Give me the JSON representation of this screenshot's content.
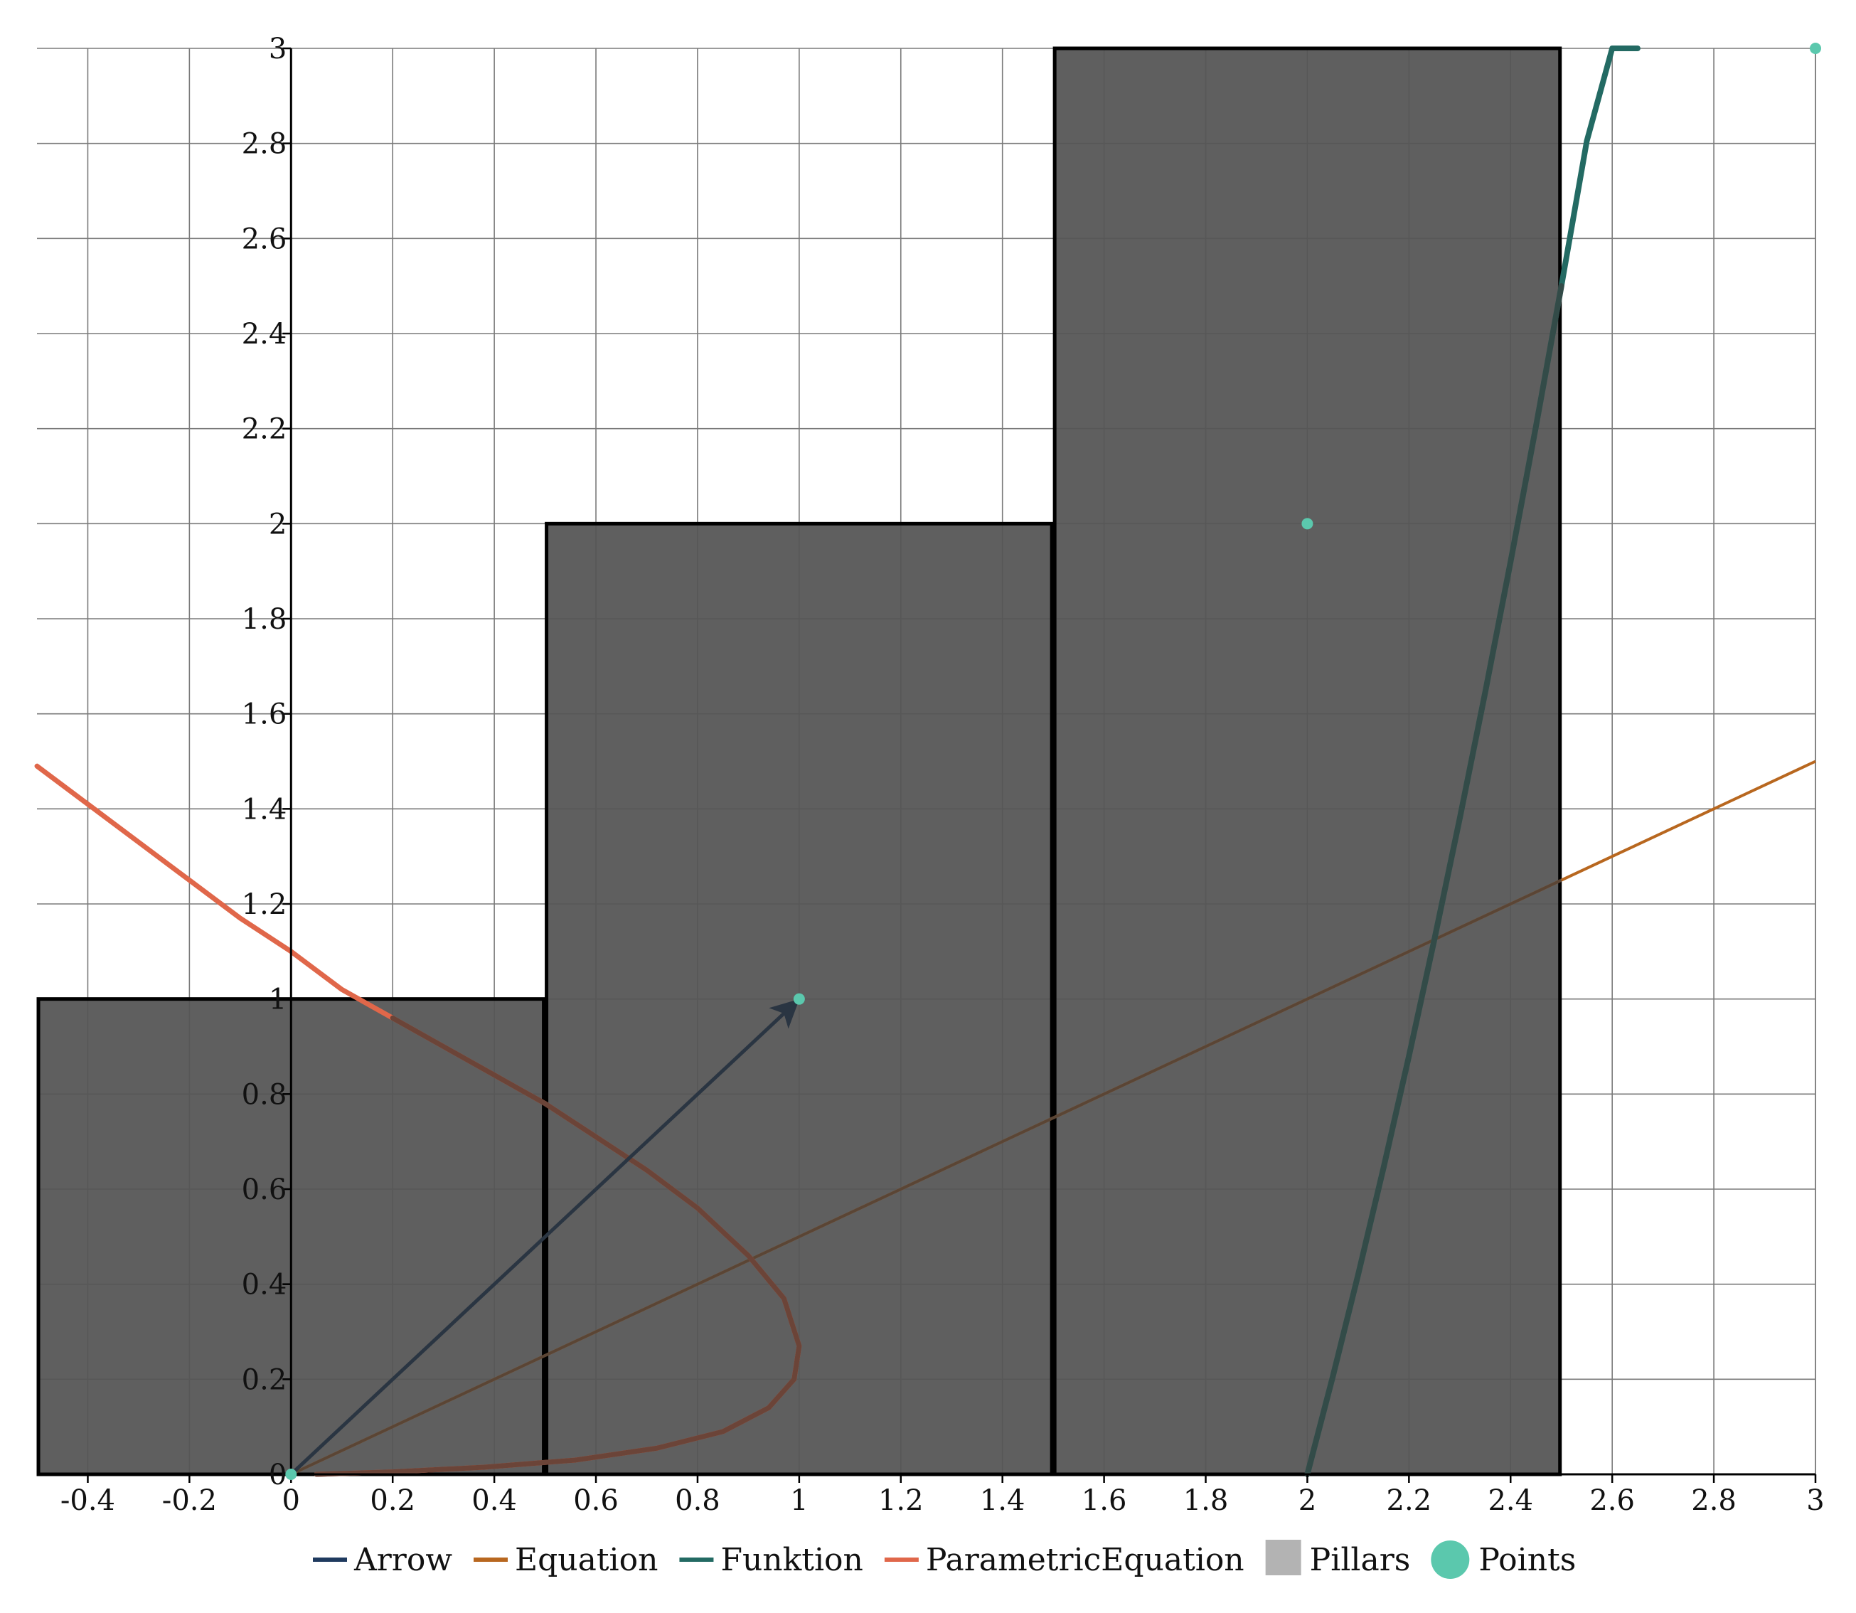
{
  "chart_data": {
    "type": "line",
    "title": "",
    "xlabel": "",
    "ylabel": "",
    "xlim": [
      -0.5,
      3
    ],
    "ylim": [
      0,
      3
    ],
    "grid": true,
    "x_ticks": [
      -0.4,
      -0.2,
      0,
      0.2,
      0.4,
      0.6,
      0.8,
      1,
      1.2,
      1.4,
      1.6,
      1.8,
      2,
      2.2,
      2.4,
      2.6,
      2.8,
      3
    ],
    "x_tick_labels": [
      "-0.4",
      "-0.2",
      "0",
      "0.2",
      "0.4",
      "0.6",
      "0.8",
      "1",
      "1.2",
      "1.4",
      "1.6",
      "1.8",
      "2",
      "2.2",
      "2.4",
      "2.6",
      "2.8",
      "3"
    ],
    "y_ticks": [
      0,
      0.2,
      0.4,
      0.6,
      0.8,
      1,
      1.2,
      1.4,
      1.6,
      1.8,
      2,
      2.2,
      2.4,
      2.6,
      2.8,
      3
    ],
    "y_tick_labels": [
      "0",
      "0.2",
      "0.4",
      "0.6",
      "0.8",
      "1",
      "1.2",
      "1.4",
      "1.6",
      "1.8",
      "2",
      "2.2",
      "2.4",
      "2.6",
      "2.8",
      "3"
    ],
    "legend_position": "bottom",
    "series": [
      {
        "name": "Arrow",
        "kind": "arrow",
        "color": "#1f3a5f",
        "from": [
          0,
          0
        ],
        "to": [
          1,
          1
        ]
      },
      {
        "name": "Equation",
        "kind": "line",
        "color": "#b8671f",
        "x": [
          0,
          3
        ],
        "y": [
          0,
          1.5
        ]
      },
      {
        "name": "Funktion",
        "kind": "curve",
        "color": "#236a63",
        "x": [
          2.0,
          2.05,
          2.1,
          2.15,
          2.2,
          2.25,
          2.3,
          2.35,
          2.4,
          2.45,
          2.5,
          2.55,
          2.6,
          2.65
        ],
        "y": [
          0,
          0.205,
          0.42,
          0.645,
          0.88,
          1.125,
          1.38,
          1.645,
          1.92,
          2.205,
          2.5,
          2.805,
          3.12,
          3.0
        ]
      },
      {
        "name": "ParametricEquation",
        "kind": "curve",
        "color": "#e0674a",
        "x": [
          -0.5,
          -0.4,
          -0.3,
          -0.2,
          -0.1,
          0,
          0.1,
          0.2,
          0.3,
          0.4,
          0.5,
          0.6,
          0.7,
          0.8,
          0.9,
          0.97,
          1.0,
          0.99,
          0.94,
          0.85,
          0.72,
          0.56,
          0.38,
          0.2,
          0.05
        ],
        "y": [
          1.49,
          1.41,
          1.33,
          1.25,
          1.17,
          1.1,
          1.02,
          0.96,
          0.9,
          0.84,
          0.78,
          0.71,
          0.64,
          0.56,
          0.46,
          0.37,
          0.27,
          0.2,
          0.14,
          0.09,
          0.055,
          0.03,
          0.015,
          0.005,
          0
        ]
      },
      {
        "name": "Pillars",
        "kind": "bars",
        "color": "#b3b3b3",
        "bar_fill": "#555555",
        "bars": [
          {
            "x0": -0.5,
            "x1": 0.5,
            "value": 1
          },
          {
            "x0": 0.5,
            "x1": 1.5,
            "value": 2
          },
          {
            "x0": 1.5,
            "x1": 2.5,
            "value": 3
          }
        ]
      },
      {
        "name": "Points",
        "kind": "scatter",
        "color": "#5bc8ad",
        "x": [
          0,
          1,
          2,
          3
        ],
        "y": [
          0,
          1,
          2,
          3
        ]
      }
    ]
  }
}
